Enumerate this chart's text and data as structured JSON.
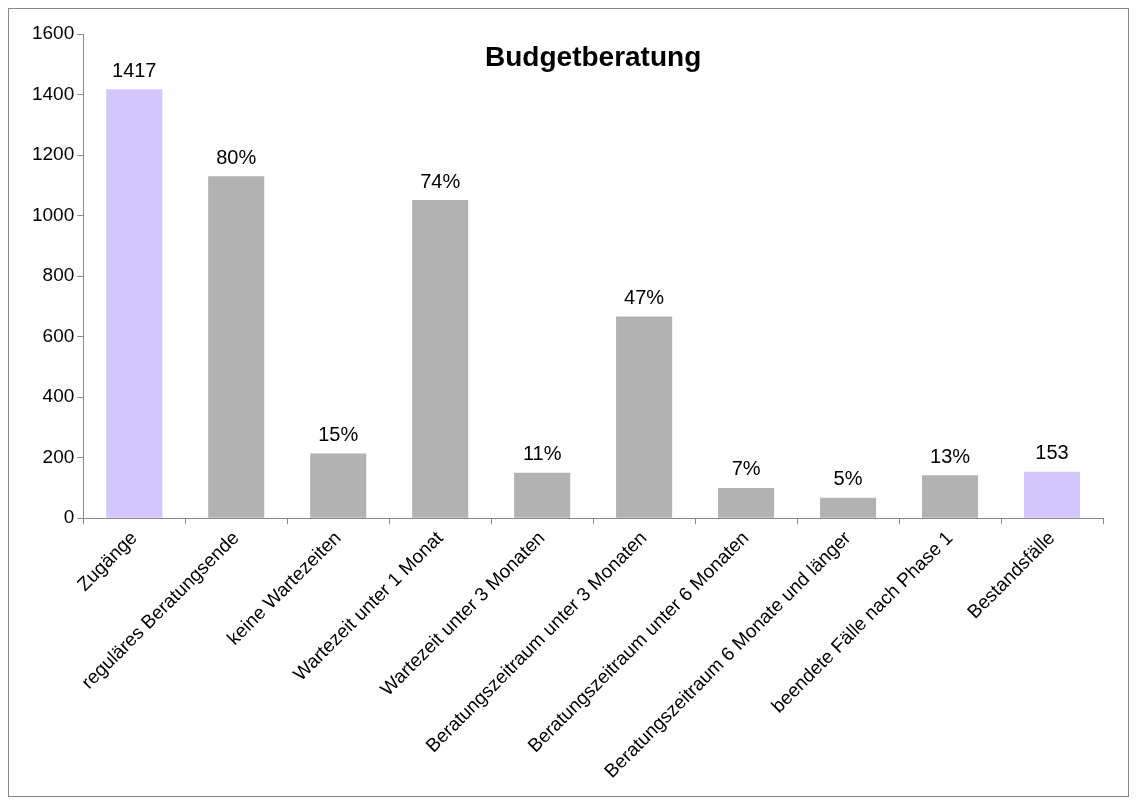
{
  "chart_data": {
    "type": "bar",
    "title": "Budgetberatung",
    "categories": [
      "Zugänge",
      "reguläres Beratungsende",
      "keine Wartezeiten",
      "Wartezeit unter 1 Monat",
      "Wartezeit unter 3 Monaten",
      "Beratungszeitraum unter 3 Monaten",
      "Beratungszeitraum unter 6 Monaten",
      "Beratungszeitraum 6 Monate und länger",
      "beendete Fälle nach Phase 1",
      "Bestandsfälle"
    ],
    "values": [
      1417,
      1130,
      214,
      1051,
      150,
      666,
      100,
      67,
      142,
      153
    ],
    "colors": [
      "#d3c6fb",
      "#b2b2b2",
      "#b2b2b2",
      "#b2b2b2",
      "#b2b2b2",
      "#b2b2b2",
      "#b2b2b2",
      "#b2b2b2",
      "#b2b2b2",
      "#d3c6fb"
    ],
    "value_labels": [
      "1417",
      null,
      null,
      null,
      null,
      null,
      null,
      null,
      null,
      "153"
    ],
    "annotations": [
      {
        "text": "80%",
        "x": "reguläres Beratungsende",
        "y": 1130
      },
      {
        "text": "15%",
        "x": "keine Wartezeiten",
        "y": 214
      },
      {
        "text": "74%",
        "x": "Wartezeit unter 1 Monat",
        "y": 1051
      },
      {
        "text": "11%",
        "x": "Wartezeit unter 3 Monaten",
        "y": 150
      },
      {
        "text": "47%",
        "x": "Beratungszeitraum unter 3 Monaten",
        "y": 666
      },
      {
        "text": "7%",
        "x": "Beratungszeitraum unter 6 Monaten",
        "y": 100
      },
      {
        "text": "5%",
        "x": "Beratungszeitraum 6 Monate und länger",
        "y": 67
      },
      {
        "text": "13%",
        "x": "beendete Fälle nach Phase 1",
        "y": 142
      }
    ],
    "ylim": [
      0,
      1600
    ],
    "yticks": [
      0,
      200,
      400,
      600,
      800,
      1000,
      1200,
      1400,
      1600
    ],
    "grid": false,
    "legend": false
  }
}
